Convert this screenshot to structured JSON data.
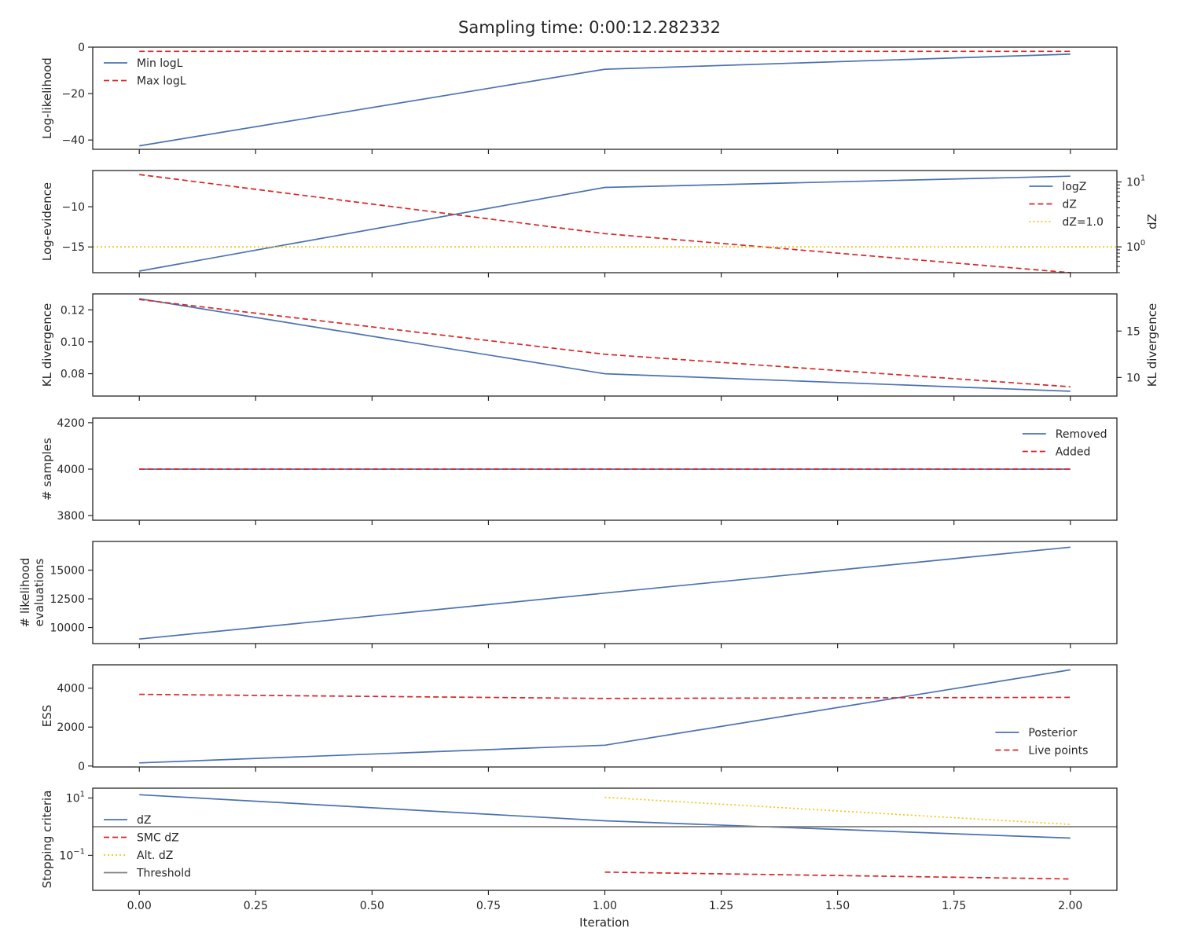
{
  "title": "Sampling time: 0:00:12.282332",
  "xlabel": "Iteration",
  "x_ticks": [
    "0.00",
    "0.25",
    "0.50",
    "0.75",
    "1.00",
    "1.25",
    "1.50",
    "1.75",
    "2.00"
  ],
  "colors": {
    "blue": "#4c72b0",
    "red": "#d62728",
    "yellow": "#f5c518",
    "gray": "#7f7f7f"
  },
  "chart_data": [
    {
      "type": "line",
      "ylabel": "Log-likelihood",
      "ylim": [
        -44,
        0
      ],
      "y_ticks": [
        "0",
        "−20",
        "−40"
      ],
      "legend": "upper-left",
      "series": [
        {
          "name": "Min logL",
          "x": [
            0,
            1,
            2
          ],
          "values": [
            -42.5,
            -9.5,
            -3.0
          ]
        },
        {
          "name": "Max logL",
          "x": [
            0,
            1,
            2
          ],
          "values": [
            -1.8,
            -1.8,
            -1.8
          ]
        }
      ]
    },
    {
      "type": "line",
      "ylabel": "Log-evidence",
      "ylabel_right": "dZ",
      "ylim": [
        -18.2,
        -5.5
      ],
      "y_ticks": [
        "−10",
        "−15"
      ],
      "right_scale": "log",
      "right_ylim": [
        0.4,
        15
      ],
      "right_ticks": [
        "10",
        "10"
      ],
      "right_tick_exponents": [
        "1",
        "0"
      ],
      "legend": "upper-right",
      "series": [
        {
          "name": "logZ",
          "x": [
            0,
            1,
            2
          ],
          "values": [
            -18.0,
            -7.6,
            -6.2
          ],
          "axis": "left"
        },
        {
          "name": "dZ",
          "x": [
            0,
            1,
            2
          ],
          "values": [
            13.0,
            1.6,
            0.4
          ],
          "axis": "right"
        },
        {
          "name": "dZ=1.0",
          "x": [
            0,
            2
          ],
          "values": [
            1.0,
            1.0
          ],
          "axis": "right",
          "span": "full"
        }
      ]
    },
    {
      "type": "line",
      "ylabel": "KL divergence",
      "ylabel_right": "KL divergence",
      "ylim": [
        0.066,
        0.13
      ],
      "y_ticks": [
        "0.12",
        "0.10",
        "0.08"
      ],
      "right_ylim": [
        8.0,
        19.0
      ],
      "right_ticks": [
        "15",
        "10"
      ],
      "series": [
        {
          "name": "",
          "x": [
            0,
            1,
            2
          ],
          "values": [
            0.127,
            0.08,
            0.069
          ],
          "axis": "left"
        },
        {
          "name": "",
          "x": [
            0,
            1,
            2
          ],
          "values": [
            18.4,
            12.5,
            9.0
          ],
          "axis": "right"
        }
      ]
    },
    {
      "type": "line",
      "ylabel": "# samples",
      "ylim": [
        3780,
        4220
      ],
      "y_ticks": [
        "4200",
        "4000",
        "3800"
      ],
      "legend": "upper-right",
      "series": [
        {
          "name": "Removed",
          "x": [
            0,
            1,
            2
          ],
          "values": [
            4000,
            4000,
            4000
          ]
        },
        {
          "name": "Added",
          "x": [
            0,
            1,
            2
          ],
          "values": [
            4000,
            4000,
            4000
          ]
        }
      ]
    },
    {
      "type": "line",
      "ylabel": "# likelihood\nevaluations",
      "ylim": [
        8600,
        17500
      ],
      "y_ticks": [
        "15000",
        "12500",
        "10000"
      ],
      "series": [
        {
          "name": "",
          "x": [
            0,
            1,
            2
          ],
          "values": [
            9000,
            13000,
            17000
          ]
        }
      ]
    },
    {
      "type": "line",
      "ylabel": "ESS",
      "ylim": [
        -50,
        5200
      ],
      "y_ticks": [
        "4000",
        "2000",
        "0"
      ],
      "legend": "lower-right",
      "series": [
        {
          "name": "Posterior",
          "x": [
            0,
            1,
            2
          ],
          "values": [
            160,
            1070,
            4940
          ]
        },
        {
          "name": "Live points",
          "x": [
            0,
            1,
            2
          ],
          "values": [
            3680,
            3470,
            3530
          ]
        }
      ]
    },
    {
      "type": "line",
      "ylabel": "Stopping criteria",
      "y_scale": "log",
      "ylim": [
        0.006,
        22
      ],
      "y_ticks": [
        "10",
        "10"
      ],
      "y_tick_exponents": [
        "1",
        "−1"
      ],
      "legend": "center-left",
      "series": [
        {
          "name": "dZ",
          "x": [
            0,
            1,
            2
          ],
          "values": [
            13.0,
            1.6,
            0.4
          ]
        },
        {
          "name": "SMC dZ",
          "x": [
            1,
            2
          ],
          "values": [
            0.026,
            0.015
          ]
        },
        {
          "name": "Alt. dZ",
          "x": [
            1,
            2
          ],
          "values": [
            10.5,
            1.2
          ]
        },
        {
          "name": "Threshold",
          "x": [
            0,
            2
          ],
          "values": [
            1.0,
            1.0
          ],
          "span": "full"
        }
      ]
    }
  ]
}
